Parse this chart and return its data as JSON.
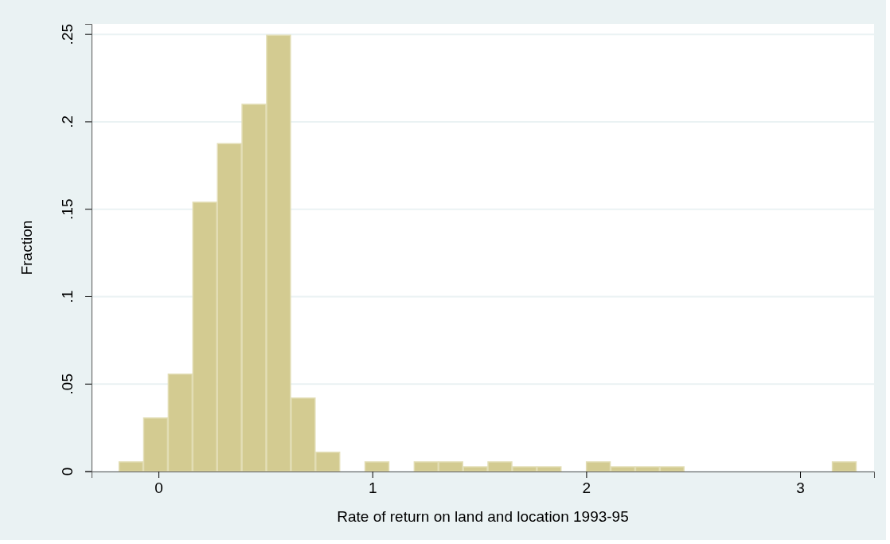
{
  "chart_data": {
    "type": "histogram",
    "xlabel": "Rate of return on land and location 1993-95",
    "ylabel": "Fraction",
    "bins": [
      -0.186,
      -0.071,
      0.044,
      0.159,
      0.274,
      0.389,
      0.504,
      0.619,
      0.734,
      0.849,
      0.964,
      1.079,
      1.194,
      1.309,
      1.424,
      1.539,
      1.654,
      1.769,
      1.884,
      1.999,
      2.114,
      2.229,
      2.344,
      2.459,
      2.574,
      2.689,
      2.804,
      2.919,
      3.034,
      3.149,
      3.264
    ],
    "values": [
      0.0055,
      0.0306,
      0.0557,
      0.154,
      0.1875,
      0.21,
      0.2495,
      0.042,
      0.011,
      0,
      0.0055,
      0,
      0.0055,
      0.0055,
      0.0027,
      0.0055,
      0.0027,
      0.0027,
      0,
      0.0055,
      0.0027,
      0.0027,
      0.0027,
      0,
      0,
      0,
      0,
      0,
      0,
      0.0055
    ],
    "color": "#d3cb91",
    "xlim": [
      -0.313,
      3.346
    ],
    "xticks": [
      0,
      1,
      2,
      3
    ],
    "ylim": [
      0,
      0.256
    ],
    "yticks": [
      {
        "value": 0,
        "label": "0"
      },
      {
        "value": 0.05,
        "label": ".05"
      },
      {
        "value": 0.1,
        "label": ".1"
      },
      {
        "value": 0.15,
        "label": ".15"
      },
      {
        "value": 0.2,
        "label": ".2"
      },
      {
        "value": 0.25,
        "label": ".25"
      }
    ],
    "grid": "y"
  }
}
